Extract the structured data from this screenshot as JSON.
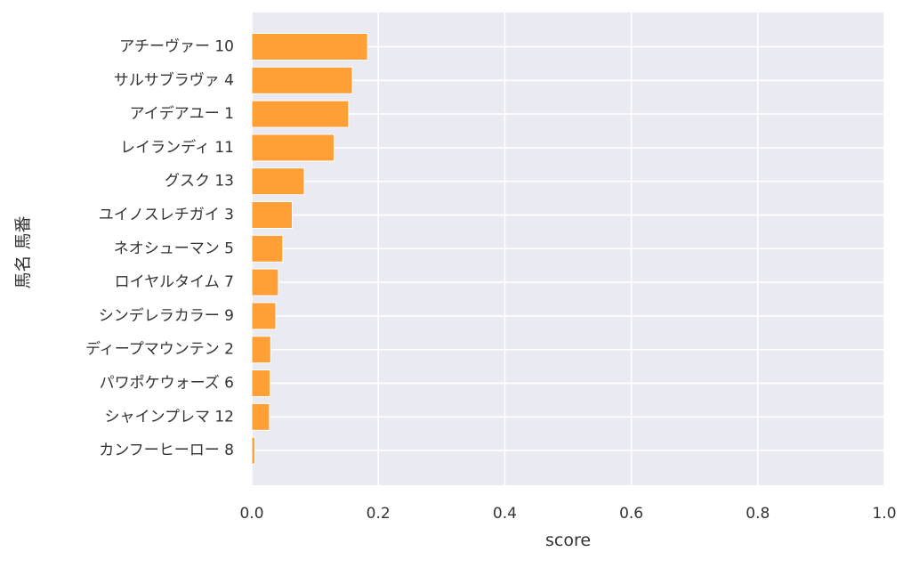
{
  "chart_data": {
    "type": "bar",
    "orientation": "horizontal",
    "title": "",
    "xlabel": "score",
    "ylabel": "馬名 馬番",
    "xlim": [
      0,
      1
    ],
    "xticks": [
      0.0,
      0.2,
      0.4,
      0.6,
      0.8,
      1.0
    ],
    "xtick_labels": [
      "0.0",
      "0.2",
      "0.4",
      "0.6",
      "0.8",
      "1.0"
    ],
    "grid": true,
    "legend": "none",
    "bar_color": "#ff9f35",
    "background_color": "#eaeaf2",
    "categories": [
      "アチーヴァー 10",
      "サルサブラヴァ 4",
      "アイデアユー 1",
      "レイランディ 11",
      "グスク 13",
      "ユイノスレチガイ 3",
      "ネオシューマン 5",
      "ロイヤルタイム 7",
      "シンデレラカラー 9",
      "ディープマウンテン 2",
      "パワポケウォーズ 6",
      "シャインプレマ 12",
      "カンフーヒーロー 8"
    ],
    "values": [
      0.183,
      0.159,
      0.153,
      0.13,
      0.083,
      0.064,
      0.049,
      0.042,
      0.038,
      0.03,
      0.029,
      0.028,
      0.005
    ]
  }
}
